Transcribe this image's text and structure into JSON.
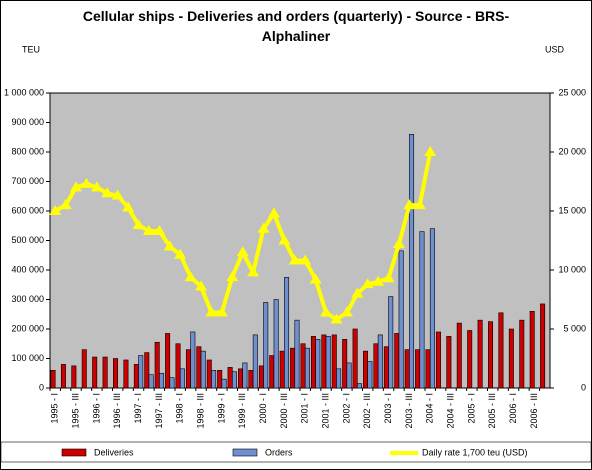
{
  "chart_data": {
    "type": "bar",
    "title": "Cellular ships - Deliveries and orders (quarterly) - Source - BRS- Alphaliner",
    "y_label": "TEU",
    "y2_label": "USD",
    "categories": [
      "1995 - I",
      null,
      "1995 - III",
      null,
      "1996 - I",
      null,
      "1996 - III",
      null,
      "1997 - I",
      null,
      "1997 - III",
      null,
      "1998 - I",
      null,
      "1998 - III",
      null,
      "1999 - I",
      null,
      "1999 - III",
      null,
      "2000 - I",
      null,
      "2000 - III",
      null,
      "2001 - I",
      null,
      "2001 - III",
      null,
      "2002 - I",
      null,
      "2002 - III",
      null,
      "2003 - I",
      null,
      "2003 - III",
      null,
      "2004 - I",
      null,
      "2004 - III",
      null,
      "2005 - I",
      null,
      "2005 - III",
      null,
      "2006 - I",
      null,
      "2006 - III",
      null
    ],
    "series": [
      {
        "name": "Deliveries",
        "color": "#cc0000",
        "values": [
          60,
          80,
          75,
          130,
          105,
          105,
          100,
          95,
          80,
          120,
          155,
          185,
          150,
          130,
          140,
          95,
          60,
          70,
          65,
          60,
          75,
          110,
          125,
          135,
          150,
          175,
          180,
          180,
          165,
          200,
          125,
          150,
          140,
          185,
          130,
          130,
          130,
          190,
          175,
          220,
          195,
          230,
          225,
          255,
          200,
          230,
          260,
          285
        ]
      },
      {
        "name": "Orders",
        "color": "#6f8fd0",
        "values": [
          0,
          0,
          0,
          0,
          0,
          0,
          0,
          0,
          110,
          45,
          50,
          35,
          65,
          190,
          125,
          60,
          30,
          55,
          85,
          180,
          290,
          300,
          375,
          230,
          135,
          165,
          175,
          65,
          85,
          15,
          90,
          180,
          310,
          465,
          860,
          530,
          540,
          null,
          null,
          null,
          null,
          null,
          null,
          null,
          null,
          null,
          null,
          null
        ]
      },
      {
        "name": "Daily rate 1,700 teu (USD)",
        "color": "#ffff00",
        "axis": "y2",
        "type": "line",
        "values": [
          15000,
          15500,
          17000,
          17300,
          17000,
          16500,
          16300,
          15300,
          13800,
          13300,
          13300,
          12000,
          11300,
          9400,
          8600,
          6400,
          6400,
          9400,
          11500,
          9800,
          13500,
          14800,
          12500,
          10800,
          10800,
          9200,
          6400,
          5800,
          6400,
          8000,
          8800,
          9000,
          9300,
          12200,
          15500,
          15500,
          20000,
          null,
          null,
          null,
          null,
          null,
          null,
          null,
          null,
          null,
          null,
          null
        ]
      }
    ],
    "ylim": [
      0,
      1000
    ],
    "yticks": [
      0,
      {
        "value": 100,
        "label": "100 000"
      },
      {
        "value": 200,
        "label": "200 000"
      },
      {
        "value": 300,
        "label": "300 000"
      },
      {
        "value": 400,
        "label": "400 000"
      },
      {
        "value": 500,
        "label": "500 000"
      },
      {
        "value": 600,
        "label": "600 000"
      },
      {
        "value": 700,
        "label": "700 000"
      },
      {
        "value": 800,
        "label": "800 000"
      },
      {
        "value": 900,
        "label": "900 000"
      },
      {
        "value": 1000,
        "label": "1 000 000"
      }
    ],
    "y2lim": [
      0,
      25000
    ],
    "y2ticks": [
      0,
      {
        "value": 5000,
        "label": "5 000"
      },
      {
        "value": 10000,
        "label": "10 000"
      },
      {
        "value": 15000,
        "label": "15 000"
      },
      {
        "value": 20000,
        "label": "20 000"
      },
      {
        "value": 25000,
        "label": "25 000"
      }
    ],
    "plot_background": "#c0c0c0",
    "legend": "bottom"
  }
}
